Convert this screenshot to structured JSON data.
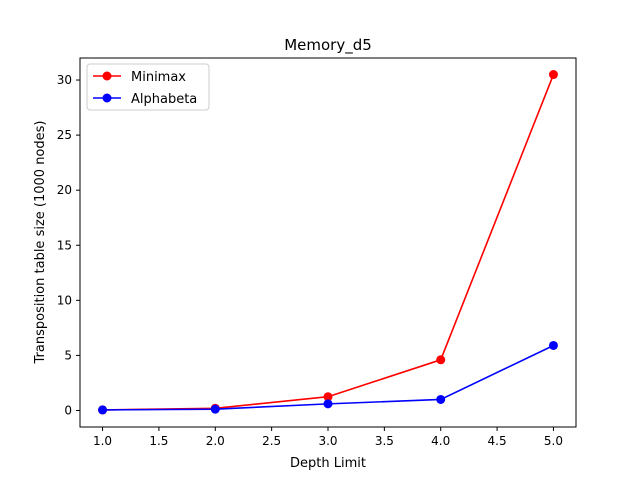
{
  "chart_data": {
    "type": "line",
    "title": "Memory_d5",
    "xlabel": "Depth Limit",
    "ylabel": "Transposition table size (1000 nodes)",
    "x": [
      1.0,
      2.0,
      3.0,
      4.0,
      5.0
    ],
    "xlim": [
      0.8,
      5.2
    ],
    "ylim": [
      -1.5,
      32.0
    ],
    "xticks": [
      1.0,
      1.5,
      2.0,
      2.5,
      3.0,
      3.5,
      4.0,
      4.5,
      5.0
    ],
    "xtick_labels": [
      "1.0",
      "1.5",
      "2.0",
      "2.5",
      "3.0",
      "3.5",
      "4.0",
      "4.5",
      "5.0"
    ],
    "yticks": [
      0,
      5,
      10,
      15,
      20,
      25,
      30
    ],
    "ytick_labels": [
      "0",
      "5",
      "10",
      "15",
      "20",
      "25",
      "30"
    ],
    "series": [
      {
        "name": "Minimax",
        "color": "#ff0000",
        "values": [
          0.05,
          0.2,
          1.25,
          4.6,
          30.5
        ]
      },
      {
        "name": "Alphabeta",
        "color": "#0000ff",
        "values": [
          0.05,
          0.12,
          0.6,
          1.0,
          5.9
        ]
      }
    ],
    "legend": "top-left",
    "grid": false,
    "markers": "circle"
  }
}
